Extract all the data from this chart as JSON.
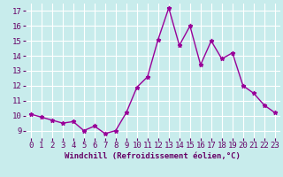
{
  "x": [
    0,
    1,
    2,
    3,
    4,
    5,
    6,
    7,
    8,
    9,
    10,
    11,
    12,
    13,
    14,
    15,
    16,
    17,
    18,
    19,
    20,
    21,
    22,
    23
  ],
  "y": [
    10.1,
    9.9,
    9.7,
    9.5,
    9.6,
    9.0,
    9.3,
    8.8,
    9.0,
    10.2,
    11.9,
    12.6,
    15.1,
    17.2,
    14.7,
    16.0,
    13.4,
    15.0,
    13.8,
    14.2,
    12.0,
    11.5,
    10.7,
    10.2
  ],
  "line_color": "#990099",
  "marker": "*",
  "marker_size": 3.5,
  "bg_color": "#c8ecec",
  "grid_color": "#ffffff",
  "xlabel": "Windchill (Refroidissement éolien,°C)",
  "yticks": [
    9,
    10,
    11,
    12,
    13,
    14,
    15,
    16,
    17
  ],
  "xlim": [
    -0.5,
    23.5
  ],
  "ylim": [
    8.5,
    17.5
  ],
  "xticks": [
    0,
    1,
    2,
    3,
    4,
    5,
    6,
    7,
    8,
    9,
    10,
    11,
    12,
    13,
    14,
    15,
    16,
    17,
    18,
    19,
    20,
    21,
    22,
    23
  ],
  "xlabel_fontsize": 6.5,
  "tick_fontsize": 6.5,
  "line_width": 1.0
}
